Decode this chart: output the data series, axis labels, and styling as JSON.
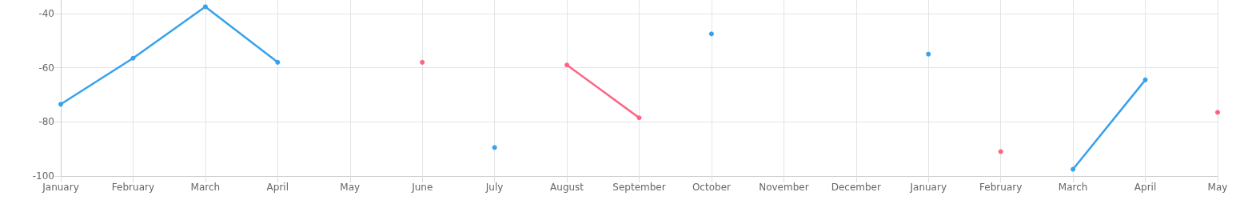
{
  "chart_data": {
    "type": "line",
    "categories": [
      "January",
      "February",
      "March",
      "April",
      "May",
      "June",
      "July",
      "August",
      "September",
      "October",
      "November",
      "December",
      "January",
      "February",
      "March",
      "April",
      "May"
    ],
    "series": [
      {
        "color": "#36a2eb",
        "values": [
          -73.5,
          -56.5,
          -37.5,
          -58,
          null,
          null,
          -89.5,
          null,
          null,
          -47.5,
          null,
          null,
          -55,
          null,
          -97.5,
          -64.5,
          null
        ]
      },
      {
        "color": "#ff6384",
        "values": [
          null,
          null,
          null,
          null,
          null,
          -58,
          null,
          -59,
          -78.5,
          null,
          null,
          null,
          null,
          -91,
          null,
          null,
          -76.5
        ]
      }
    ],
    "ylim": [
      -100,
      -35
    ],
    "yticks": [
      -100,
      -80,
      -60,
      -40
    ],
    "grid": true,
    "marker": "circle",
    "line_style": "solid"
  }
}
